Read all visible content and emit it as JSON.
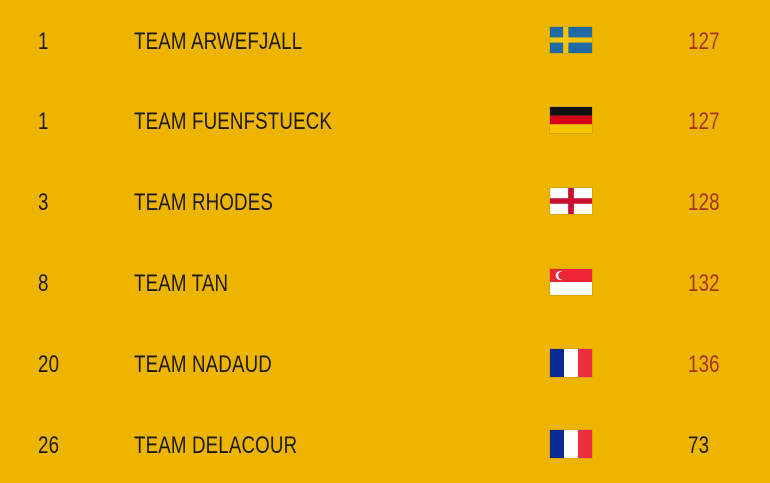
{
  "colors": {
    "background": "#edb500",
    "score_highlight": "#a8321a",
    "score_normal": "#1e1a10"
  },
  "rows": [
    {
      "rank": "1",
      "team": "TEAM ARWEFJALL",
      "flag": "sweden-flag-icon",
      "score": "127",
      "highlight": true
    },
    {
      "rank": "1",
      "team": "TEAM FUENFSTUECK",
      "flag": "germany-flag-icon",
      "score": "127",
      "highlight": true
    },
    {
      "rank": "3",
      "team": "TEAM RHODES",
      "flag": "england-flag-icon",
      "score": "128",
      "highlight": true
    },
    {
      "rank": "8",
      "team": "TEAM TAN",
      "flag": "singapore-flag-icon",
      "score": "132",
      "highlight": true
    },
    {
      "rank": "20",
      "team": "TEAM NADAUD",
      "flag": "france-flag-icon",
      "score": "136",
      "highlight": true
    },
    {
      "rank": "26",
      "team": "TEAM DELACOUR",
      "flag": "france-flag-icon",
      "score": "73",
      "highlight": false
    }
  ]
}
